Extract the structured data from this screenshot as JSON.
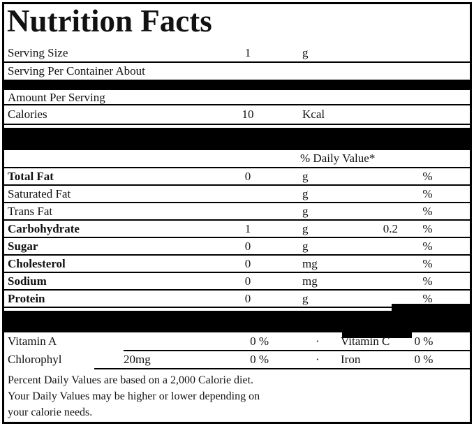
{
  "label": {
    "title": "Nutrition Facts",
    "serving": [
      {
        "label": "Serving Size",
        "value": "1",
        "unit": "g"
      },
      {
        "label": "Serving Per Container About",
        "value": "",
        "unit": ""
      }
    ],
    "amount_header": "Amount Per Serving",
    "calories": {
      "label": "Calories",
      "value": "10",
      "unit": "Kcal"
    },
    "daily_value_header": "% Daily Value*",
    "nutrients": [
      {
        "label": "Total Fat",
        "value": "0",
        "unit": "g",
        "extra": "",
        "pct": "%"
      },
      {
        "label": "Saturated Fat",
        "value": "",
        "unit": "g",
        "extra": "",
        "pct": "%"
      },
      {
        "label": "Trans Fat",
        "value": "",
        "unit": "g",
        "extra": "",
        "pct": "%"
      },
      {
        "label": "Carbohydrate",
        "value": "1",
        "unit": "g",
        "extra": "0.2",
        "pct": "%"
      },
      {
        "label": "Sugar",
        "value": "0",
        "unit": "g",
        "extra": "",
        "pct": "%"
      },
      {
        "label": "Cholesterol",
        "value": "0",
        "unit": "mg",
        "extra": "",
        "pct": "%"
      },
      {
        "label": "Sodium",
        "value": "0",
        "unit": "mg",
        "extra": "",
        "pct": "%"
      },
      {
        "label": "Protein",
        "value": "0",
        "unit": "g",
        "extra": "",
        "pct": "%"
      }
    ],
    "vitamins": [
      {
        "name": "Vitamin A",
        "amount": "",
        "pct": "0 %",
        "separator": "·",
        "name2": "Vitamin C",
        "pct2": "0 %"
      },
      {
        "name": "Chlorophyl",
        "amount": "20mg",
        "pct": "0 %",
        "separator": "·",
        "name2": "Iron",
        "pct2": "0 %"
      }
    ],
    "footnote": [
      "Percent Daily Values are based on a 2,000 Calorie diet.",
      "Your Daily Values may be higher or lower depending on",
      "your calorie needs."
    ],
    "colors": {
      "ink": "#111111",
      "bar": "#000000",
      "background": "#ffffff"
    }
  }
}
